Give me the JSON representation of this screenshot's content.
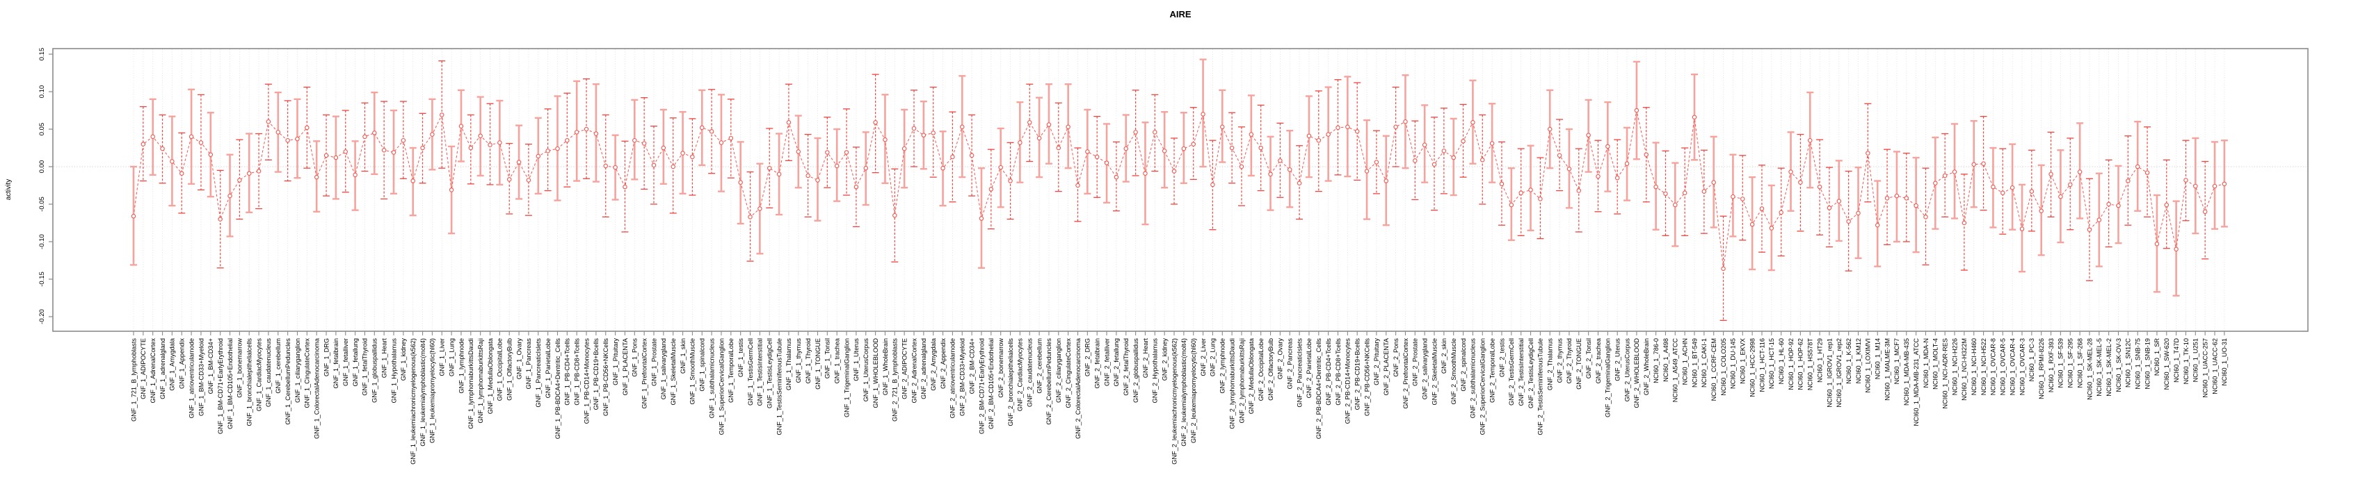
{
  "chart_data": {
    "type": "line",
    "title": "AIRE",
    "xlabel": "",
    "ylabel": "activity",
    "ylim": [
      -0.219,
      0.157
    ],
    "yticks": [
      0.15,
      0.1,
      0.05,
      0.0,
      -0.05,
      -0.1,
      -0.15,
      -0.2
    ],
    "legend": "none",
    "grid": {
      "vertical_per_category": true,
      "horizontal_zero_line": true,
      "style": "dotted"
    },
    "point_marker": "open-circle",
    "line_style": "dashed",
    "error_bars": true,
    "colors": {
      "point": "#f15750",
      "connector": "#f15750",
      "errorbar_pink": "#f6a29d",
      "errorbar_red": "#ee4540",
      "gridline": "#dcdcdc",
      "zero_line": "#c8c8c8",
      "axis_box": "#8a8a8a",
      "text": "#000000",
      "background": "#ffffff"
    },
    "categories": [
      "GNF_1_721_B_lymphoblasts",
      "GNF_1_ADIPOCYTE",
      "GNF_1_AdrenalCortex",
      "GNF_1_adrenalgland",
      "GNF_1_Amygdala",
      "GNF_1_Appendix",
      "GNF_1_atrioventricularnode",
      "GNF_1_BM-CD33+Myeloid",
      "GNF_1_BM-CD34+",
      "GNF_1_BM-CD71+EarlyErythroid",
      "GNF_1_BM-CD105+Endothelial",
      "GNF_1_bonemarrow",
      "GNF_1_bronchialepithelialcells",
      "GNF_1_CardiacMyocytes",
      "GNF_1_caudatenucleus",
      "GNF_1_cerebellum",
      "GNF_1_CerebellumPeduncles",
      "GNF_1_ciliaryganglion",
      "GNF_1_CingulateCortex",
      "GNF_1_ColorectalAdenocarcinoma",
      "GNF_1_DRG",
      "GNF_1_fetalbrain",
      "GNF_1_fetalliver",
      "GNF_1_fetallung",
      "GNF_1_fetalThyroid",
      "GNF_1_globuspallidus",
      "GNF_1_Heart",
      "GNF_1_Hypothalamus",
      "GNF_1_kidney",
      "GNF_1_leukemiachronicmyelogenous(k562)",
      "GNF_1_leukemialymphoblastic(molt4)",
      "GNF_1_leukemiapromyelocytic(hl60)",
      "GNF_1_Liver",
      "GNF_1_Lung",
      "GNF_1_lymphnode",
      "GNF_1_lymphomaburkittsDaudi",
      "GNF_1_lymphomaburkittsRaji",
      "GNF_1_MedullaOblongata",
      "GNF_1_OccipitalLobe",
      "GNF_1_OlfactoryBulb",
      "GNF_1_Ovary",
      "GNF_1_Pancreas",
      "GNF_1_PancreaticIslets",
      "GNF_1_ParietalLobe",
      "GNF_1_PB-BDCA4+Dentritic_Cells",
      "GNF_1_PB-CD4+Tcells",
      "GNF_1_PB-CD8+Tcells",
      "GNF_1_PB-CD14+Monocytes",
      "GNF_1_PB-CD19+Bcells",
      "GNF_1_PB-CD56+NKCells",
      "GNF_1_Pituitary",
      "GNF_1_PLACENTA",
      "GNF_1_Pons",
      "GNF_1_PrefrontalCortex",
      "GNF_1_Prostate",
      "GNF_1_salivarygland",
      "GNF_1_SkeletalMuscle",
      "GNF_1_skin",
      "GNF_1_SmoothMuscle",
      "GNF_1_spinalcord",
      "GNF_1_subthalamicnucleus",
      "GNF_1_SuperiorCervicalGanglion",
      "GNF_1_TemporalLobe",
      "GNF_1_testis",
      "GNF_1_TestisGermCell",
      "GNF_1_TestisInterstitial",
      "GNF_1_TestisLeydigCell",
      "GNF_1_TestisSeminiferousTubule",
      "GNF_1_Thalamus",
      "GNF_1_thymus",
      "GNF_1_Thyroid",
      "GNF_1_TONGUE",
      "GNF_1_Tonsil",
      "GNF_1_trachea",
      "GNF_1_TrigeminalGanglion",
      "GNF_1_Uterus",
      "GNF_1_UterusCorpus",
      "GNF_1_WHOLEBLOOD",
      "GNF_1_WholeBrain",
      "GNF_2_721_B_lymphoblasts",
      "GNF_2_ADIPOCYTE",
      "GNF_2_AdrenalCortex",
      "GNF_2_adrenalgland",
      "GNF_2_Amygdala",
      "GNF_2_Appendix",
      "GNF_2_atrioventricularnode",
      "GNF_2_BM-CD33+Myeloid",
      "GNF_2_BM-CD34+",
      "GNF_2_BM-CD71+EarlyErythroid",
      "GNF_2_BM-CD105+Endothelial",
      "GNF_2_bonemarrow",
      "GNF_2_bronchialepithelialcells",
      "GNF_2_CardiacMyocytes",
      "GNF_2_caudatenucleus",
      "GNF_2_cerebellum",
      "GNF_2_CerebellumPeduncles",
      "GNF_2_ciliaryganglion",
      "GNF_2_CingulateCortex",
      "GNF_2_ColorectalAdenocarcinoma",
      "GNF_2_DRG",
      "GNF_2_fetalbrain",
      "GNF_2_fetalliver",
      "GNF_2_fetallung",
      "GNF_2_fetalThyroid",
      "GNF_2_globuspallidus",
      "GNF_2_Heart",
      "GNF_2_Hypothalamus",
      "GNF_2_kidney",
      "GNF_2_leukemiachronicmyelogenous(k562)",
      "GNF_2_leukemialymphoblastic(molt4)",
      "GNF_2_leukemiapromyelocytic(hl60)",
      "GNF_2_Liver",
      "GNF_2_Lung",
      "GNF_2_lymphnode",
      "GNF_2_lymphomaburkittsDaudi",
      "GNF_2_lymphomaburkittsRaji",
      "GNF_2_MedullaOblongata",
      "GNF_2_OccipitalLobe",
      "GNF_2_OlfactoryBulb",
      "GNF_2_Ovary",
      "GNF_2_Pancreas",
      "GNF_2_PancreaticIslets",
      "GNF_2_ParietalLobe",
      "GNF_2_PB-BDCA4+Dentritic_Cells",
      "GNF_2_PB-CD4+Tcells",
      "GNF_2_PB-CD8+Tcells",
      "GNF_2_PB-CD14+Monocytes",
      "GNF_2_PB-CD19+Bcells",
      "GNF_2_PB-CD56+NKCells",
      "GNF_2_Pituitary",
      "GNF_2_PLACENTA",
      "GNF_2_Pons",
      "GNF_2_PrefrontalCortex",
      "GNF_2_Prostate",
      "GNF_2_salivarygland",
      "GNF_2_SkeletalMuscle",
      "GNF_2_skin",
      "GNF_2_SmoothMuscle",
      "GNF_2_spinalcord",
      "GNF_2_subthalamicnucleus",
      "GNF_2_SuperiorCervicalGanglion",
      "GNF_2_TemporalLobe",
      "GNF_2_testis",
      "GNF_2_TestisGermCell",
      "GNF_2_TestisInterstitial",
      "GNF_2_TestisLeydigCell",
      "GNF_2_TestisSeminiferousTubule",
      "GNF_2_Thalamus",
      "GNF_2_thymus",
      "GNF_2_Thyroid",
      "GNF_2_TONGUE",
      "GNF_2_Tonsil",
      "GNF_2_trachea",
      "GNF_2_TrigeminalGanglion",
      "GNF_2_Uterus",
      "GNF_2_UterusCorpus",
      "GNF_2_WHOLEBLOOD",
      "GNF_2_WholeBrain",
      "NCI60_1_786-0",
      "NCI60_1_A498",
      "NCI60_1_A549_ATCC",
      "NCI60_1_ACHN",
      "NCI60_1_BT-549",
      "NCI60_1_CAKI-1",
      "NCI60_1_CCRF-CEM",
      "NCI60_1_COLO205",
      "NCI60_1_DU-145",
      "NCI60_1_EKVX",
      "NCI60_1_HCC-2998",
      "NCI60_1_HCT-116",
      "NCI60_1_HCT-15",
      "NCI60_1_HL-60",
      "NCI60_1_HOP-92",
      "NCI60_1_HOP-62",
      "NCI60_1_HS578T",
      "NCI60_1_HT29",
      "NCI60_1_IGROV1_rep1",
      "NCI60_1_IGROV1_rep2",
      "NCI60_1_K-562",
      "NCI60_1_KM12",
      "NCI60_1_LOXIMVI",
      "NCI60_1_M14",
      "NCI60_1_MALME-3M",
      "NCI60_1_MCF7",
      "NCI60_1_MDA-MB-435",
      "NCI60_1_MDA-MB-231_ATCC",
      "NCI60_1_MDA-N",
      "NCI60_1_MOLT-4",
      "NCI60_1_NCI-ADR-RES",
      "NCI60_1_NCI-H226",
      "NCI60_1_NCI-H322M",
      "NCI60_1_NCI-H460",
      "NCI60_1_NCI-H522",
      "NCI60_1_OVCAR-8",
      "NCI60_1_OVCAR-5",
      "NCI60_1_OVCAR-4",
      "NCI60_1_OVCAR-3",
      "NCI60_1_PC-3",
      "NCI60_1_RPMI-8226",
      "NCI60_1_RXF-393",
      "NCI60_1_SF-539",
      "NCI60_1_SF-295",
      "NCI60_1_SF-268",
      "NCI60_1_SK-MEL-28",
      "NCI60_1_SK-MEL-5",
      "NCI60_1_SK-MEL-2",
      "NCI60_1_SK-OV-3",
      "NCI60_1_SN12C",
      "NCI60_1_SNB-75",
      "NCI60_1_SNB-19",
      "NCI60_1_SR",
      "NCI60_1_SW-620",
      "NCI60_1_T47D",
      "NCI60_1_TK-10",
      "NCI60_1_U251",
      "NCI60_1_UACC-257",
      "NCI60_1_UACC-62",
      "NCI60_1_UO-31"
    ],
    "series": [
      {
        "name": "activity",
        "values": [
          -0.066,
          0.03,
          0.04,
          0.024,
          0.007,
          -0.009,
          0.04,
          0.032,
          0.016,
          -0.07,
          -0.039,
          -0.018,
          -0.009,
          -0.006,
          0.06,
          0.046,
          0.035,
          0.037,
          0.052,
          -0.014,
          0.015,
          0.012,
          0.02,
          -0.011,
          0.04,
          0.045,
          0.022,
          0.019,
          0.035,
          -0.019,
          0.025,
          0.043,
          0.069,
          -0.031,
          0.054,
          0.025,
          0.041,
          0.029,
          0.032,
          -0.017,
          0.006,
          -0.018,
          0.014,
          0.021,
          0.024,
          0.035,
          0.046,
          0.05,
          0.044,
          0.001,
          -0.001,
          -0.027,
          0.035,
          0.031,
          0.002,
          0.025,
          0.0,
          0.018,
          0.013,
          0.052,
          0.047,
          0.032,
          0.038,
          -0.021,
          -0.067,
          -0.056,
          -0.002,
          -0.01,
          0.059,
          0.02,
          -0.012,
          -0.018,
          0.019,
          0.001,
          0.019,
          -0.027,
          -0.002,
          0.059,
          0.036,
          -0.065,
          0.024,
          0.051,
          0.042,
          0.045,
          -0.002,
          0.013,
          0.053,
          0.015,
          -0.069,
          -0.03,
          -0.001,
          -0.019,
          0.032,
          0.059,
          0.038,
          0.056,
          0.025,
          0.053,
          -0.025,
          0.02,
          0.013,
          0.005,
          -0.014,
          0.024,
          0.046,
          -0.009,
          0.046,
          0.021,
          -0.006,
          0.024,
          0.03,
          0.07,
          -0.024,
          0.053,
          0.025,
          0.0,
          0.043,
          0.025,
          -0.01,
          0.008,
          -0.004,
          -0.022,
          0.041,
          0.035,
          0.043,
          0.052,
          0.053,
          0.047,
          -0.006,
          0.006,
          -0.019,
          0.053,
          0.06,
          0.008,
          0.029,
          0.003,
          0.021,
          0.012,
          0.034,
          0.059,
          0.009,
          0.031,
          -0.023,
          -0.051,
          -0.035,
          -0.031,
          -0.043,
          0.05,
          0.015,
          -0.003,
          -0.032,
          0.042,
          -0.013,
          0.027,
          -0.015,
          0.004,
          0.075,
          0.016,
          -0.027,
          -0.036,
          -0.051,
          -0.035,
          0.066,
          -0.033,
          -0.021,
          -0.136,
          -0.04,
          -0.043,
          -0.077,
          -0.056,
          -0.082,
          -0.061,
          -0.007,
          -0.021,
          0.035,
          -0.027,
          -0.055,
          -0.046,
          -0.073,
          -0.062,
          0.018,
          -0.078,
          -0.042,
          -0.039,
          -0.042,
          -0.052,
          -0.067,
          -0.022,
          -0.012,
          -0.007,
          -0.075,
          0.003,
          0.004,
          -0.027,
          -0.035,
          -0.028,
          -0.083,
          -0.033,
          -0.059,
          -0.01,
          -0.04,
          -0.024,
          -0.007,
          -0.084,
          -0.071,
          -0.05,
          -0.052,
          -0.019,
          0.0,
          -0.008,
          -0.103,
          -0.051,
          -0.11,
          -0.018,
          -0.026,
          -0.06,
          -0.026,
          -0.023
        ]
      },
      {
        "name": "ci_low",
        "values": [
          -0.131,
          -0.019,
          -0.011,
          -0.022,
          -0.052,
          -0.062,
          -0.023,
          -0.031,
          -0.04,
          -0.135,
          -0.093,
          -0.07,
          -0.061,
          -0.056,
          0.009,
          -0.007,
          -0.019,
          -0.015,
          -0.002,
          -0.06,
          -0.039,
          -0.043,
          -0.034,
          -0.058,
          -0.006,
          -0.01,
          -0.043,
          -0.036,
          -0.016,
          -0.065,
          -0.022,
          -0.004,
          -0.002,
          -0.089,
          0.007,
          -0.023,
          -0.012,
          -0.024,
          -0.024,
          -0.063,
          -0.043,
          -0.065,
          -0.036,
          -0.032,
          -0.045,
          -0.027,
          -0.019,
          -0.016,
          -0.02,
          -0.067,
          -0.044,
          -0.087,
          -0.017,
          -0.03,
          -0.05,
          -0.023,
          -0.062,
          -0.036,
          -0.038,
          0.002,
          -0.009,
          -0.033,
          -0.015,
          -0.076,
          -0.126,
          -0.116,
          -0.055,
          -0.064,
          0.008,
          -0.028,
          -0.067,
          -0.072,
          -0.028,
          -0.046,
          -0.038,
          -0.08,
          -0.051,
          -0.008,
          -0.022,
          -0.127,
          -0.028,
          0.0,
          -0.003,
          -0.014,
          -0.052,
          -0.047,
          -0.014,
          -0.039,
          -0.135,
          -0.083,
          -0.054,
          -0.07,
          -0.021,
          0.007,
          -0.014,
          0.004,
          -0.033,
          -0.002,
          -0.073,
          -0.036,
          -0.041,
          -0.048,
          -0.059,
          -0.02,
          -0.012,
          -0.077,
          -0.006,
          -0.028,
          -0.05,
          -0.022,
          -0.017,
          0.0,
          -0.084,
          0.006,
          -0.022,
          -0.052,
          -0.012,
          -0.032,
          -0.058,
          -0.041,
          -0.054,
          -0.07,
          -0.014,
          -0.033,
          -0.019,
          -0.011,
          -0.013,
          -0.018,
          -0.07,
          -0.036,
          -0.078,
          0.0,
          -0.002,
          -0.044,
          -0.021,
          -0.058,
          -0.036,
          -0.038,
          -0.014,
          0.004,
          -0.05,
          -0.021,
          -0.078,
          -0.098,
          -0.092,
          -0.085,
          -0.096,
          -0.002,
          -0.032,
          -0.055,
          -0.087,
          -0.007,
          -0.06,
          -0.033,
          -0.063,
          -0.045,
          0.01,
          -0.047,
          -0.084,
          -0.092,
          -0.106,
          -0.092,
          0.009,
          -0.089,
          -0.081,
          -0.205,
          -0.093,
          -0.098,
          -0.137,
          -0.114,
          -0.138,
          -0.119,
          -0.059,
          -0.086,
          -0.028,
          -0.091,
          -0.107,
          -0.099,
          -0.139,
          -0.122,
          -0.047,
          -0.133,
          -0.104,
          -0.1,
          -0.1,
          -0.114,
          -0.131,
          -0.083,
          -0.067,
          -0.069,
          -0.138,
          -0.054,
          -0.058,
          -0.081,
          -0.09,
          -0.084,
          -0.14,
          -0.086,
          -0.118,
          -0.067,
          -0.101,
          -0.084,
          -0.069,
          -0.152,
          -0.133,
          -0.107,
          -0.102,
          -0.078,
          -0.059,
          -0.067,
          -0.167,
          -0.109,
          -0.172,
          -0.072,
          -0.089,
          -0.123,
          -0.083,
          -0.08
        ]
      },
      {
        "name": "ci_high",
        "values": [
          0.0,
          0.08,
          0.09,
          0.069,
          0.067,
          0.045,
          0.103,
          0.096,
          0.072,
          -0.005,
          0.016,
          0.036,
          0.044,
          0.044,
          0.11,
          0.099,
          0.088,
          0.09,
          0.106,
          0.034,
          0.069,
          0.067,
          0.075,
          0.034,
          0.085,
          0.099,
          0.087,
          0.075,
          0.087,
          0.025,
          0.071,
          0.09,
          0.141,
          0.027,
          0.102,
          0.069,
          0.093,
          0.084,
          0.088,
          0.031,
          0.055,
          0.03,
          0.065,
          0.077,
          0.094,
          0.098,
          0.114,
          0.117,
          0.11,
          0.069,
          0.042,
          0.034,
          0.089,
          0.092,
          0.054,
          0.076,
          0.065,
          0.073,
          0.064,
          0.102,
          0.103,
          0.096,
          0.09,
          0.033,
          -0.007,
          0.004,
          0.051,
          0.044,
          0.11,
          0.068,
          0.043,
          0.038,
          0.066,
          0.05,
          0.077,
          0.026,
          0.046,
          0.123,
          0.096,
          -0.003,
          0.076,
          0.102,
          0.087,
          0.106,
          0.047,
          0.073,
          0.121,
          0.069,
          -0.002,
          0.023,
          0.051,
          0.032,
          0.086,
          0.11,
          0.092,
          0.11,
          0.085,
          0.11,
          0.025,
          0.076,
          0.067,
          0.057,
          0.033,
          0.069,
          0.102,
          0.059,
          0.096,
          0.073,
          0.038,
          0.072,
          0.079,
          0.143,
          0.035,
          0.102,
          0.072,
          0.053,
          0.095,
          0.082,
          0.04,
          0.058,
          0.048,
          0.028,
          0.094,
          0.101,
          0.106,
          0.116,
          0.12,
          0.112,
          0.062,
          0.048,
          0.041,
          0.106,
          0.122,
          0.061,
          0.082,
          0.066,
          0.078,
          0.064,
          0.083,
          0.115,
          0.069,
          0.084,
          0.033,
          -0.002,
          0.024,
          0.028,
          0.012,
          0.102,
          0.063,
          0.05,
          0.024,
          0.089,
          0.035,
          0.086,
          0.036,
          0.052,
          0.14,
          0.079,
          0.032,
          0.021,
          0.005,
          0.025,
          0.123,
          0.022,
          0.04,
          -0.066,
          0.016,
          0.015,
          -0.014,
          0.002,
          -0.025,
          -0.002,
          0.046,
          0.043,
          0.099,
          0.036,
          -0.001,
          0.008,
          -0.006,
          -0.001,
          0.084,
          -0.019,
          0.023,
          0.02,
          0.018,
          0.012,
          -0.002,
          0.039,
          0.044,
          0.057,
          -0.01,
          0.061,
          0.067,
          0.025,
          0.024,
          0.03,
          -0.024,
          0.022,
          0.002,
          0.046,
          0.022,
          0.038,
          0.058,
          -0.016,
          -0.009,
          0.009,
          0.001,
          0.041,
          0.06,
          0.053,
          -0.038,
          0.009,
          -0.046,
          0.035,
          0.038,
          0.007,
          0.033,
          0.035
        ]
      }
    ]
  }
}
